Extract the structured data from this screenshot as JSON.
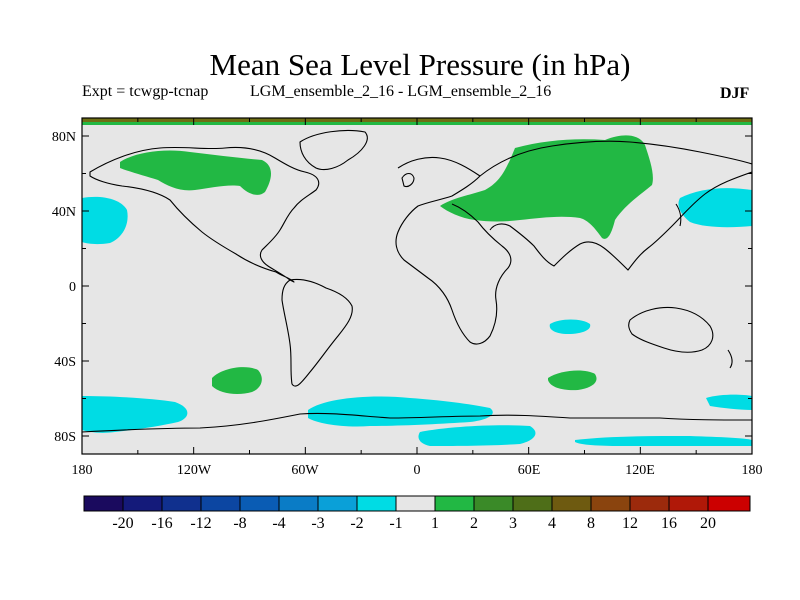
{
  "title": "Mean Sea Level Pressure (in hPa)",
  "experiment_label": "Expt = tcwgp-tcnap",
  "runs_label": "LGM_ensemble_2_16 - LGM_ensemble_2_16",
  "season": "DJF",
  "axes": {
    "lat_ticks": [
      "80N",
      "40N",
      "0",
      "40S",
      "80S"
    ],
    "lon_ticks": [
      "180",
      "120W",
      "60W",
      "0",
      "60E",
      "120E",
      "180"
    ]
  },
  "colorbar": {
    "labels": [
      "-20",
      "-16",
      "-12",
      "-8",
      "-4",
      "-3",
      "-2",
      "-1",
      "1",
      "2",
      "3",
      "4",
      "8",
      "12",
      "16",
      "20"
    ],
    "colors": [
      "#1a0a5e",
      "#141a7a",
      "#10308e",
      "#0c46a2",
      "#0a5cb4",
      "#0a7cc6",
      "#0aa0d8",
      "#00dce4",
      "#e6e6e6",
      "#22b844",
      "#3a8a28",
      "#4e6e18",
      "#6e5a10",
      "#8a440e",
      "#9c2a0c",
      "#b01808",
      "#cc0000"
    ]
  },
  "map_colors": {
    "background": "#e6e6e6",
    "positive": "#22b844",
    "negative": "#00dce4",
    "top_band": "#6e6e14",
    "coastline": "#000000"
  }
}
